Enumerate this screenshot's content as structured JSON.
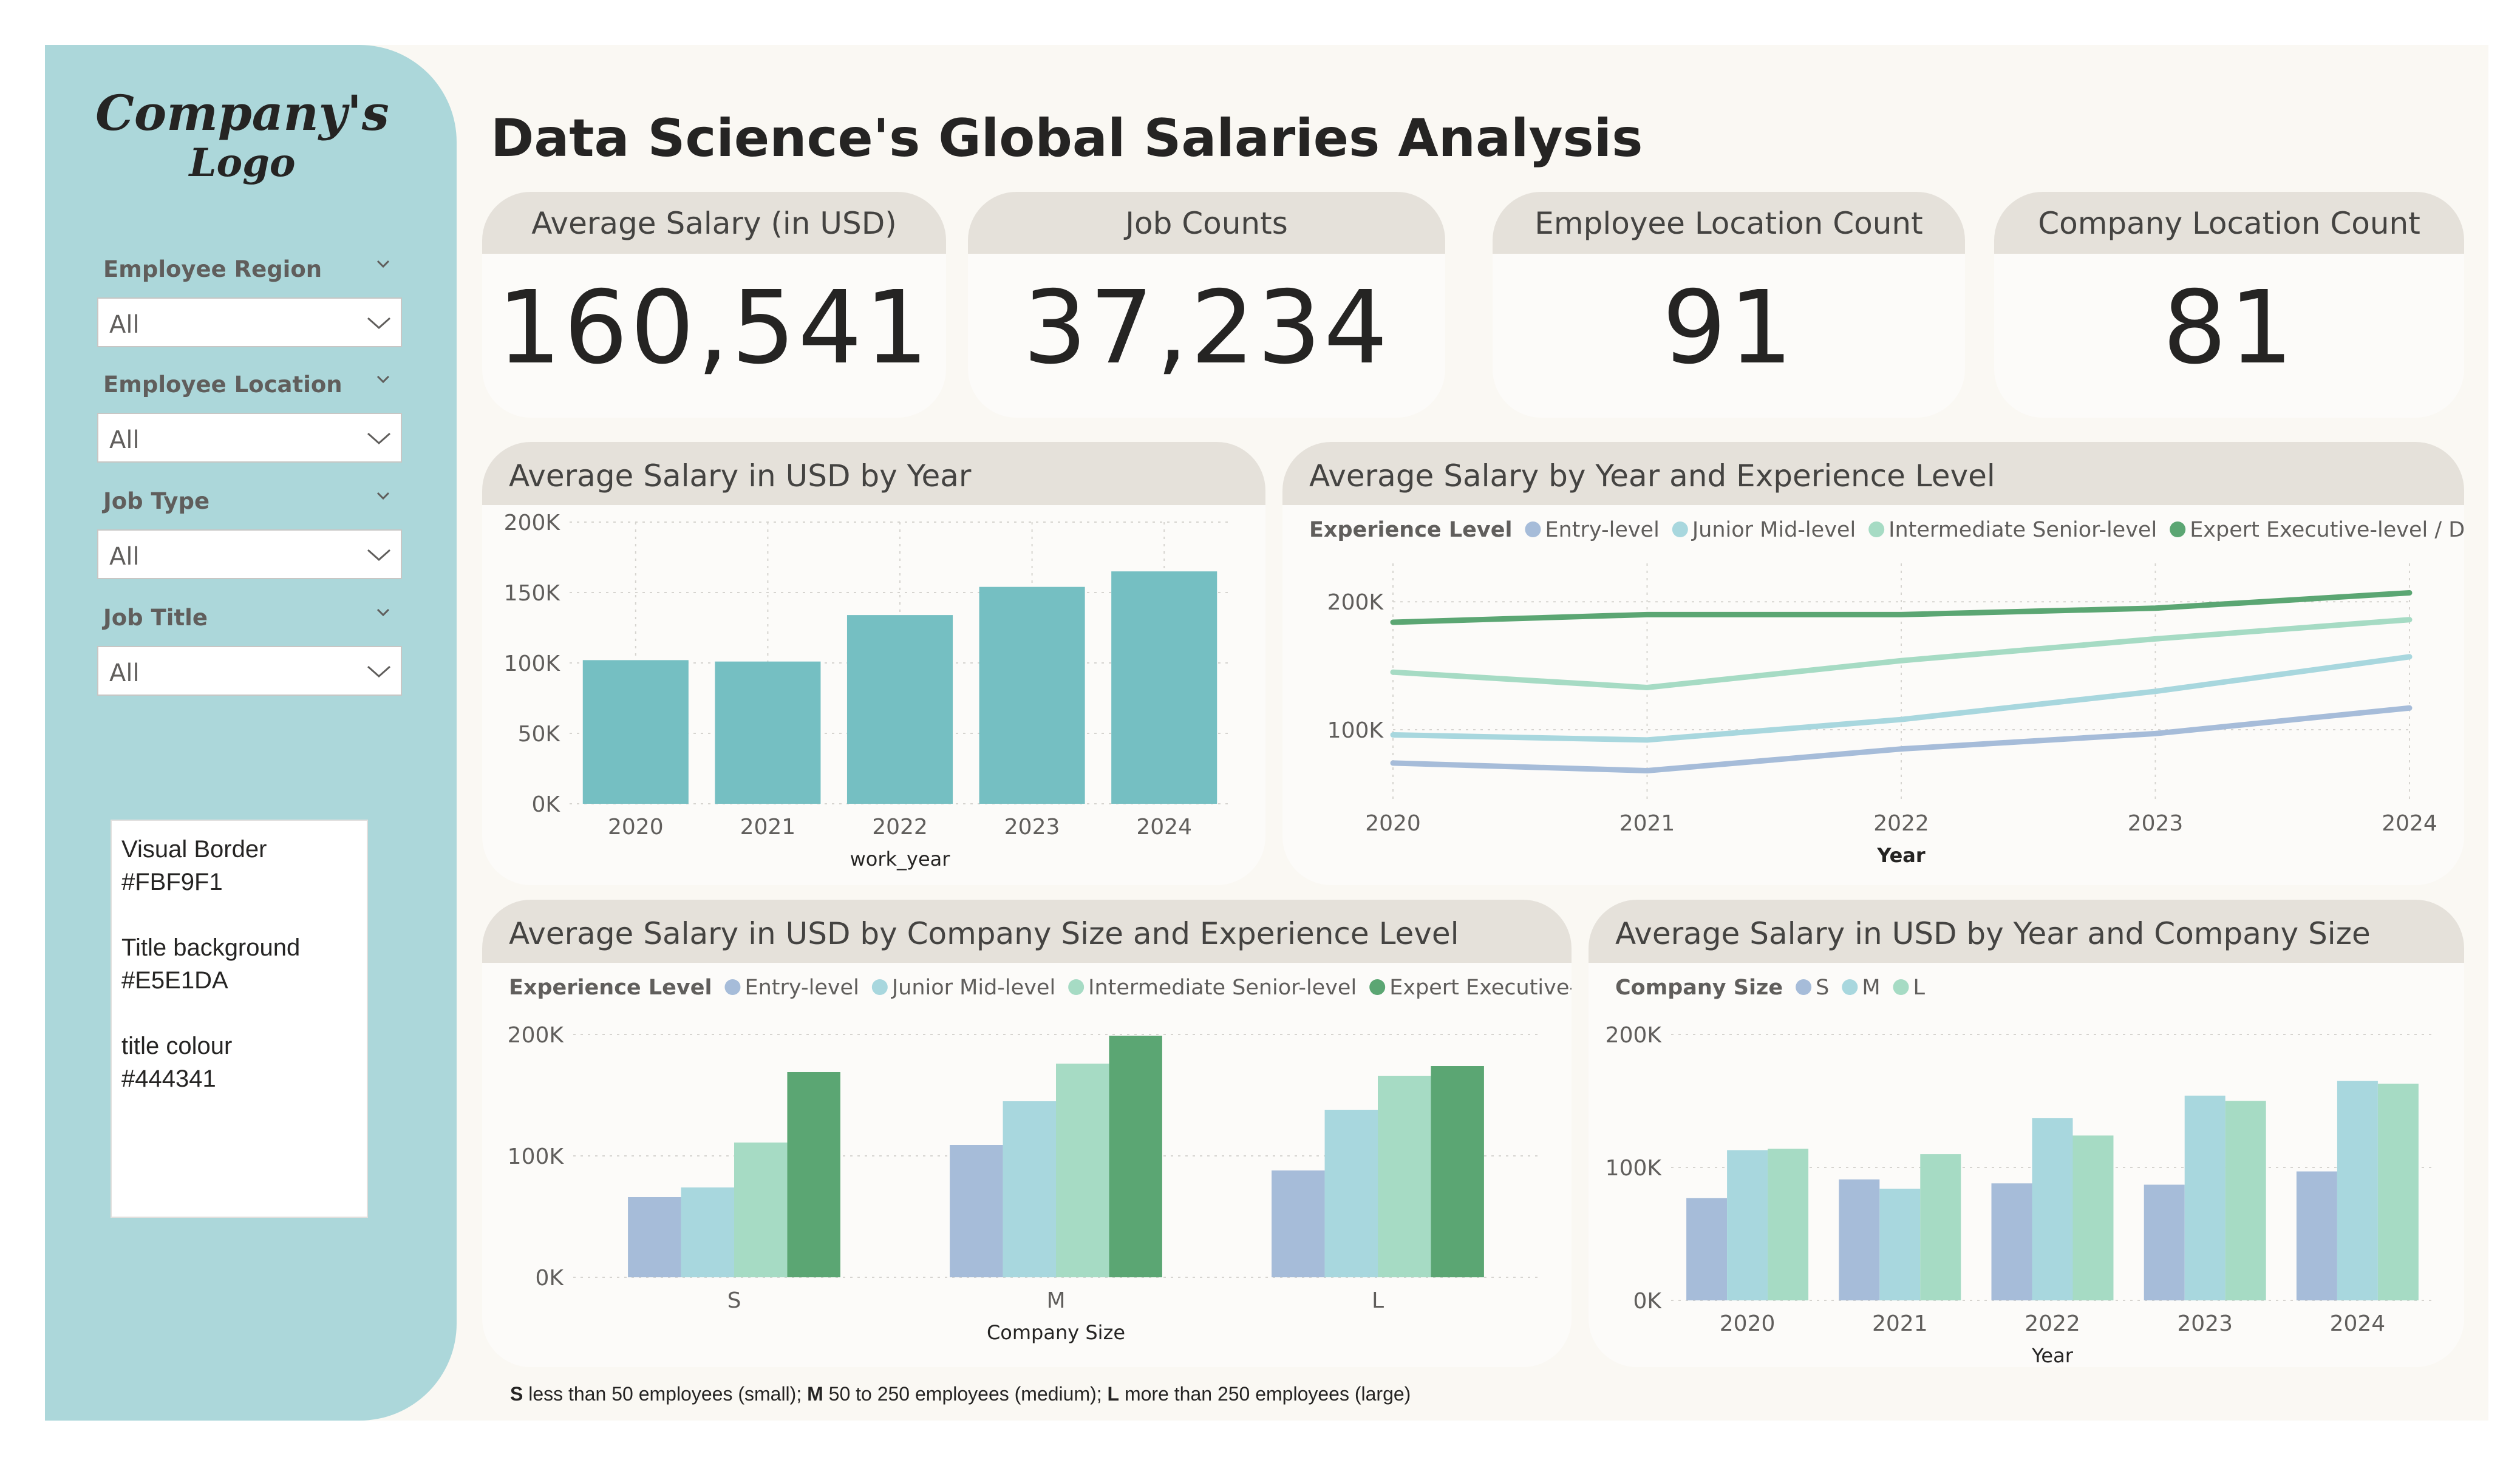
{
  "logo": {
    "line1": "Company's",
    "line2": "Logo"
  },
  "page_title": "Data Science's Global Salaries Analysis",
  "slicers": [
    {
      "label": "Employee Region",
      "value": "All"
    },
    {
      "label": "Employee Location",
      "value": "All"
    },
    {
      "label": "Job Type",
      "value": "All"
    },
    {
      "label": "Job Title",
      "value": "All"
    }
  ],
  "notes": {
    "line1": "Visual Border",
    "line2": "#FBF9F1",
    "line3": "Title background",
    "line4": "#E5E1DA",
    "line5": "title colour",
    "line6": "#444341"
  },
  "colors": {
    "sidebar": "#ACD7DA",
    "title_background": "#E5E1DA",
    "title_colour": "#444341",
    "bar_teal": "#75BFC2",
    "entry": "#A6BCD9",
    "junior": "#A8D7DE",
    "intermediate": "#A6DBC4",
    "expert": "#5BA673"
  },
  "kpis": [
    {
      "label": "Average Salary (in USD)",
      "value": "160,541"
    },
    {
      "label": "Job Counts",
      "value": "37,234"
    },
    {
      "label": "Employee Location Count",
      "value": "91"
    },
    {
      "label": "Company Location Count",
      "value": "81"
    }
  ],
  "chart_data": [
    {
      "type": "bar",
      "title": "Average Salary in USD by Year",
      "xlabel": "work_year",
      "ylabel": "",
      "categories": [
        "2020",
        "2021",
        "2022",
        "2023",
        "2024"
      ],
      "values": [
        102000,
        101000,
        134000,
        154000,
        165000
      ],
      "ylim": [
        0,
        200000
      ],
      "yticks": [
        "0K",
        "50K",
        "100K",
        "150K",
        "200K"
      ],
      "grid": true,
      "color": "#75BFC2"
    },
    {
      "type": "line",
      "title": "Average Salary by Year and Experience Level",
      "xlabel": "Year",
      "legend_title": "Experience Level",
      "legend_position": "top-left",
      "x": [
        "2020",
        "2021",
        "2022",
        "2023",
        "2024"
      ],
      "ylim": [
        45000,
        230000
      ],
      "yticks": [
        {
          "value": 100000,
          "label": "100K"
        },
        {
          "value": 200000,
          "label": "200K"
        }
      ],
      "series": [
        {
          "name": "Entry-level",
          "color": "#A6BCD9",
          "values": [
            74000,
            68000,
            85000,
            97000,
            117000
          ]
        },
        {
          "name": "Junior Mid-level",
          "color": "#A8D7DE",
          "values": [
            96000,
            92000,
            108000,
            130000,
            157000
          ]
        },
        {
          "name": "Intermediate Senior-level",
          "color": "#A6DBC4",
          "values": [
            145000,
            133000,
            154000,
            171000,
            186000
          ]
        },
        {
          "name": "Expert Executive-level / Dir...",
          "color": "#5BA673",
          "values": [
            184000,
            190000,
            190000,
            195000,
            207000
          ]
        }
      ]
    },
    {
      "type": "bar",
      "title": "Average Salary in USD by Company Size and Experience Level",
      "xlabel": "Company Size",
      "legend_title": "Experience Level",
      "legend_position": "top-left",
      "categories": [
        "S",
        "M",
        "L"
      ],
      "ylim": [
        0,
        200000
      ],
      "yticks": [
        "0K",
        "100K",
        "200K"
      ],
      "series": [
        {
          "name": "Entry-level",
          "color": "#A6BCD9",
          "values": [
            66000,
            109000,
            88000
          ]
        },
        {
          "name": "Junior Mid-level",
          "color": "#A8D7DE",
          "values": [
            74000,
            145000,
            138000
          ]
        },
        {
          "name": "Intermediate Senior-level",
          "color": "#A6DBC4",
          "values": [
            111000,
            176000,
            166000
          ]
        },
        {
          "name": "Expert Executive-l...",
          "color": "#5BA673",
          "values": [
            169000,
            199000,
            174000
          ]
        }
      ]
    },
    {
      "type": "bar",
      "title": "Average Salary in USD by Year and Company Size",
      "xlabel": "Year",
      "legend_title": "Company Size",
      "legend_position": "top-left",
      "categories": [
        "2020",
        "2021",
        "2022",
        "2023",
        "2024"
      ],
      "ylim": [
        0,
        200000
      ],
      "yticks": [
        "0K",
        "100K",
        "200K"
      ],
      "series": [
        {
          "name": "S",
          "color": "#A6BCD9",
          "values": [
            77000,
            91000,
            88000,
            87000,
            97000
          ]
        },
        {
          "name": "M",
          "color": "#A8D7DE",
          "values": [
            113000,
            84000,
            137000,
            154000,
            165000
          ]
        },
        {
          "name": "L",
          "color": "#A6DBC4",
          "values": [
            114000,
            110000,
            124000,
            150000,
            163000
          ]
        }
      ]
    }
  ],
  "footnote": {
    "s_key": "S",
    "s_text": " less than 50 employees (small); ",
    "m_key": "M",
    "m_text": " 50 to 250 employees (medium); ",
    "l_key": "L",
    "l_text": " more than 250 employees (large)"
  }
}
